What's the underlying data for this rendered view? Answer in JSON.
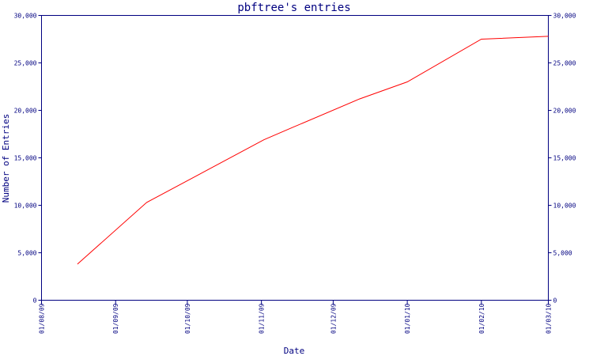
{
  "chart_data": {
    "type": "line",
    "title": "pbftree's entries",
    "xlabel": "Date",
    "ylabel": "Number of Entries",
    "x_tick_labels": [
      "01/08/09",
      "01/09/09",
      "01/10/09",
      "01/11/09",
      "01/12/09",
      "01/01/10",
      "01/02/10",
      "01/03/10"
    ],
    "y_ticks": [
      0,
      5000,
      10000,
      15000,
      20000,
      25000,
      30000
    ],
    "y_tick_labels": [
      "0",
      "5,000",
      "10,000",
      "15,000",
      "20,000",
      "25,000",
      "30,000"
    ],
    "xlim": [
      "2009-08-01",
      "2010-03-01"
    ],
    "ylim": [
      0,
      30000
    ],
    "grid": false,
    "series": [
      {
        "color": "#ff0000",
        "x": [
          "2009-08-16",
          "2009-09-14",
          "2009-11-02",
          "2009-11-14",
          "2009-12-12",
          "2010-01-01",
          "2010-02-01",
          "2010-03-01"
        ],
        "y": [
          3800,
          10300,
          16900,
          18200,
          21200,
          23000,
          27500,
          27800
        ]
      }
    ]
  }
}
